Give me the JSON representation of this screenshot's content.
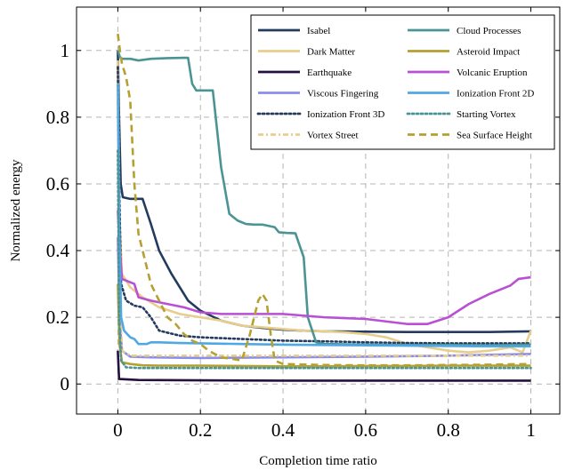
{
  "chart_data": {
    "type": "line",
    "xlabel": "Completion time ratio",
    "ylabel": "Normalized energy",
    "xlim": [
      -0.1,
      1.07
    ],
    "ylim": [
      -0.09,
      1.13
    ],
    "x_ticks": [
      0,
      0.2,
      0.4,
      0.6,
      0.8,
      1
    ],
    "x_tick_labels": [
      "0",
      "0.2",
      "0.4",
      "0.6",
      "0.8",
      "1"
    ],
    "y_ticks": [
      0,
      0.2,
      0.4,
      0.6,
      0.8,
      1
    ],
    "y_tick_labels": [
      "0",
      "0.2",
      "0.4",
      "0.6",
      "0.8",
      "1"
    ],
    "grid": true,
    "legend_position": "top-right",
    "series": [
      {
        "name": "Isabel",
        "color": "#233b5e",
        "dash": "solid",
        "points": [
          [
            0,
            1.0
          ],
          [
            0.003,
            0.8
          ],
          [
            0.007,
            0.6
          ],
          [
            0.012,
            0.56
          ],
          [
            0.03,
            0.555
          ],
          [
            0.06,
            0.555
          ],
          [
            0.08,
            0.48
          ],
          [
            0.1,
            0.4
          ],
          [
            0.13,
            0.33
          ],
          [
            0.17,
            0.25
          ],
          [
            0.2,
            0.22
          ],
          [
            0.25,
            0.19
          ],
          [
            0.3,
            0.175
          ],
          [
            0.35,
            0.168
          ],
          [
            0.4,
            0.163
          ],
          [
            0.45,
            0.16
          ],
          [
            0.5,
            0.158
          ],
          [
            0.6,
            0.157
          ],
          [
            0.7,
            0.156
          ],
          [
            0.8,
            0.156
          ],
          [
            0.9,
            0.156
          ],
          [
            1.0,
            0.158
          ]
        ]
      },
      {
        "name": "Dark Matter",
        "color": "#e8ce8c",
        "dash": "solid",
        "points": [
          [
            0,
            0.97
          ],
          [
            0.004,
            0.5
          ],
          [
            0.01,
            0.33
          ],
          [
            0.03,
            0.29
          ],
          [
            0.06,
            0.26
          ],
          [
            0.1,
            0.23
          ],
          [
            0.15,
            0.21
          ],
          [
            0.2,
            0.2
          ],
          [
            0.25,
            0.19
          ],
          [
            0.3,
            0.175
          ],
          [
            0.35,
            0.17
          ],
          [
            0.4,
            0.165
          ],
          [
            0.45,
            0.16
          ],
          [
            0.5,
            0.158
          ],
          [
            0.55,
            0.155
          ],
          [
            0.6,
            0.15
          ],
          [
            0.65,
            0.14
          ],
          [
            0.7,
            0.12
          ],
          [
            0.75,
            0.11
          ],
          [
            0.8,
            0.1
          ],
          [
            0.85,
            0.095
          ],
          [
            0.9,
            0.1
          ],
          [
            0.95,
            0.11
          ],
          [
            0.98,
            0.095
          ],
          [
            1.0,
            0.16
          ]
        ]
      },
      {
        "name": "Earthquake",
        "color": "#26103f",
        "dash": "solid",
        "points": [
          [
            0,
            0.1
          ],
          [
            0.003,
            0.015
          ],
          [
            0.05,
            0.012
          ],
          [
            0.2,
            0.011
          ],
          [
            0.4,
            0.01
          ],
          [
            0.6,
            0.01
          ],
          [
            0.8,
            0.01
          ],
          [
            1.0,
            0.01
          ]
        ]
      },
      {
        "name": "Viscous Fingering",
        "color": "#8c8ceb",
        "dash": "solid",
        "points": [
          [
            0,
            0.44
          ],
          [
            0.004,
            0.2
          ],
          [
            0.01,
            0.1
          ],
          [
            0.03,
            0.082
          ],
          [
            0.08,
            0.08
          ],
          [
            0.2,
            0.078
          ],
          [
            0.4,
            0.08
          ],
          [
            0.6,
            0.082
          ],
          [
            0.8,
            0.085
          ],
          [
            1.0,
            0.09
          ]
        ]
      },
      {
        "name": "Ionization Front 3D",
        "color": "#233b5e",
        "dash": "dotted",
        "points": [
          [
            0,
            0.95
          ],
          [
            0.003,
            0.6
          ],
          [
            0.008,
            0.3
          ],
          [
            0.02,
            0.25
          ],
          [
            0.04,
            0.235
          ],
          [
            0.06,
            0.23
          ],
          [
            0.08,
            0.2
          ],
          [
            0.1,
            0.16
          ],
          [
            0.15,
            0.145
          ],
          [
            0.2,
            0.14
          ],
          [
            0.3,
            0.135
          ],
          [
            0.4,
            0.13
          ],
          [
            0.5,
            0.128
          ],
          [
            0.6,
            0.125
          ],
          [
            0.7,
            0.123
          ],
          [
            0.8,
            0.122
          ],
          [
            0.9,
            0.122
          ],
          [
            1.0,
            0.122
          ]
        ]
      },
      {
        "name": "Vortex Street",
        "color": "#e8ce8c",
        "dash": "dashdot",
        "points": [
          [
            0,
            0.85
          ],
          [
            0.004,
            0.3
          ],
          [
            0.01,
            0.1
          ],
          [
            0.03,
            0.085
          ],
          [
            0.1,
            0.085
          ],
          [
            0.2,
            0.085
          ],
          [
            0.3,
            0.085
          ],
          [
            0.4,
            0.085
          ],
          [
            0.5,
            0.085
          ],
          [
            0.6,
            0.085
          ],
          [
            0.7,
            0.085
          ],
          [
            0.8,
            0.085
          ],
          [
            0.9,
            0.085
          ],
          [
            1.0,
            0.085
          ]
        ]
      },
      {
        "name": "Cloud Processes",
        "color": "#4a9494",
        "dash": "solid",
        "points": [
          [
            0,
            1.0
          ],
          [
            0.005,
            0.98
          ],
          [
            0.01,
            0.975
          ],
          [
            0.03,
            0.975
          ],
          [
            0.05,
            0.97
          ],
          [
            0.08,
            0.975
          ],
          [
            0.12,
            0.977
          ],
          [
            0.16,
            0.978
          ],
          [
            0.17,
            0.978
          ],
          [
            0.18,
            0.9
          ],
          [
            0.19,
            0.88
          ],
          [
            0.23,
            0.88
          ],
          [
            0.25,
            0.65
          ],
          [
            0.27,
            0.51
          ],
          [
            0.29,
            0.49
          ],
          [
            0.31,
            0.48
          ],
          [
            0.33,
            0.478
          ],
          [
            0.35,
            0.478
          ],
          [
            0.38,
            0.47
          ],
          [
            0.39,
            0.455
          ],
          [
            0.41,
            0.453
          ],
          [
            0.43,
            0.452
          ],
          [
            0.45,
            0.38
          ],
          [
            0.46,
            0.2
          ],
          [
            0.48,
            0.125
          ],
          [
            0.5,
            0.12
          ],
          [
            0.6,
            0.118
          ],
          [
            0.7,
            0.117
          ],
          [
            0.8,
            0.117
          ],
          [
            0.9,
            0.116
          ],
          [
            1.0,
            0.118
          ]
        ]
      },
      {
        "name": "Asteroid Impact",
        "color": "#b5a132",
        "dash": "solid",
        "points": [
          [
            0,
            0.3
          ],
          [
            0.004,
            0.12
          ],
          [
            0.01,
            0.065
          ],
          [
            0.03,
            0.06
          ],
          [
            0.06,
            0.056
          ],
          [
            0.1,
            0.055
          ],
          [
            0.2,
            0.055
          ],
          [
            0.3,
            0.054
          ],
          [
            0.4,
            0.053
          ],
          [
            0.5,
            0.053
          ],
          [
            0.6,
            0.054
          ],
          [
            0.7,
            0.054
          ],
          [
            0.8,
            0.055
          ],
          [
            0.9,
            0.055
          ],
          [
            1.0,
            0.055
          ]
        ]
      },
      {
        "name": "Volcanic Eruption",
        "color": "#b94fd4",
        "dash": "solid",
        "points": [
          [
            0,
            0.52
          ],
          [
            0.005,
            0.4
          ],
          [
            0.01,
            0.315
          ],
          [
            0.02,
            0.31
          ],
          [
            0.04,
            0.3
          ],
          [
            0.05,
            0.26
          ],
          [
            0.08,
            0.25
          ],
          [
            0.12,
            0.24
          ],
          [
            0.16,
            0.23
          ],
          [
            0.2,
            0.215
          ],
          [
            0.25,
            0.21
          ],
          [
            0.3,
            0.21
          ],
          [
            0.35,
            0.21
          ],
          [
            0.4,
            0.21
          ],
          [
            0.45,
            0.205
          ],
          [
            0.5,
            0.2
          ],
          [
            0.6,
            0.195
          ],
          [
            0.7,
            0.18
          ],
          [
            0.75,
            0.18
          ],
          [
            0.8,
            0.2
          ],
          [
            0.85,
            0.24
          ],
          [
            0.9,
            0.27
          ],
          [
            0.95,
            0.295
          ],
          [
            0.97,
            0.315
          ],
          [
            1.0,
            0.32
          ]
        ]
      },
      {
        "name": "Ionization Front 2D",
        "color": "#4fa8e4",
        "dash": "solid",
        "points": [
          [
            0,
            0.9
          ],
          [
            0.003,
            0.5
          ],
          [
            0.008,
            0.2
          ],
          [
            0.015,
            0.16
          ],
          [
            0.03,
            0.14
          ],
          [
            0.04,
            0.135
          ],
          [
            0.05,
            0.12
          ],
          [
            0.07,
            0.12
          ],
          [
            0.08,
            0.125
          ],
          [
            0.1,
            0.125
          ],
          [
            0.15,
            0.123
          ],
          [
            0.2,
            0.122
          ],
          [
            0.3,
            0.12
          ],
          [
            0.4,
            0.118
          ],
          [
            0.5,
            0.117
          ],
          [
            0.6,
            0.116
          ],
          [
            0.7,
            0.115
          ],
          [
            0.8,
            0.114
          ],
          [
            0.9,
            0.113
          ],
          [
            1.0,
            0.113
          ]
        ]
      },
      {
        "name": "Starting Vortex",
        "color": "#4a9494",
        "dash": "dotted",
        "points": [
          [
            0,
            0.7
          ],
          [
            0.003,
            0.2
          ],
          [
            0.008,
            0.07
          ],
          [
            0.02,
            0.05
          ],
          [
            0.05,
            0.048
          ],
          [
            0.1,
            0.048
          ],
          [
            0.2,
            0.048
          ],
          [
            0.4,
            0.048
          ],
          [
            0.6,
            0.048
          ],
          [
            0.8,
            0.048
          ],
          [
            1.0,
            0.048
          ]
        ]
      },
      {
        "name": "Sea Surface Height",
        "color": "#b5a132",
        "dash": "dashed",
        "points": [
          [
            0,
            1.05
          ],
          [
            0.005,
            1.0
          ],
          [
            0.01,
            0.96
          ],
          [
            0.02,
            0.92
          ],
          [
            0.03,
            0.85
          ],
          [
            0.04,
            0.6
          ],
          [
            0.05,
            0.45
          ],
          [
            0.06,
            0.4
          ],
          [
            0.07,
            0.35
          ],
          [
            0.08,
            0.3
          ],
          [
            0.1,
            0.25
          ],
          [
            0.12,
            0.2
          ],
          [
            0.14,
            0.18
          ],
          [
            0.16,
            0.15
          ],
          [
            0.18,
            0.13
          ],
          [
            0.2,
            0.12
          ],
          [
            0.22,
            0.1
          ],
          [
            0.25,
            0.08
          ],
          [
            0.28,
            0.075
          ],
          [
            0.3,
            0.07
          ],
          [
            0.32,
            0.15
          ],
          [
            0.34,
            0.25
          ],
          [
            0.35,
            0.27
          ],
          [
            0.36,
            0.25
          ],
          [
            0.37,
            0.15
          ],
          [
            0.38,
            0.07
          ],
          [
            0.4,
            0.06
          ],
          [
            0.5,
            0.057
          ],
          [
            0.6,
            0.056
          ],
          [
            0.7,
            0.056
          ],
          [
            0.8,
            0.057
          ],
          [
            0.9,
            0.058
          ],
          [
            1.0,
            0.06
          ]
        ]
      }
    ]
  }
}
